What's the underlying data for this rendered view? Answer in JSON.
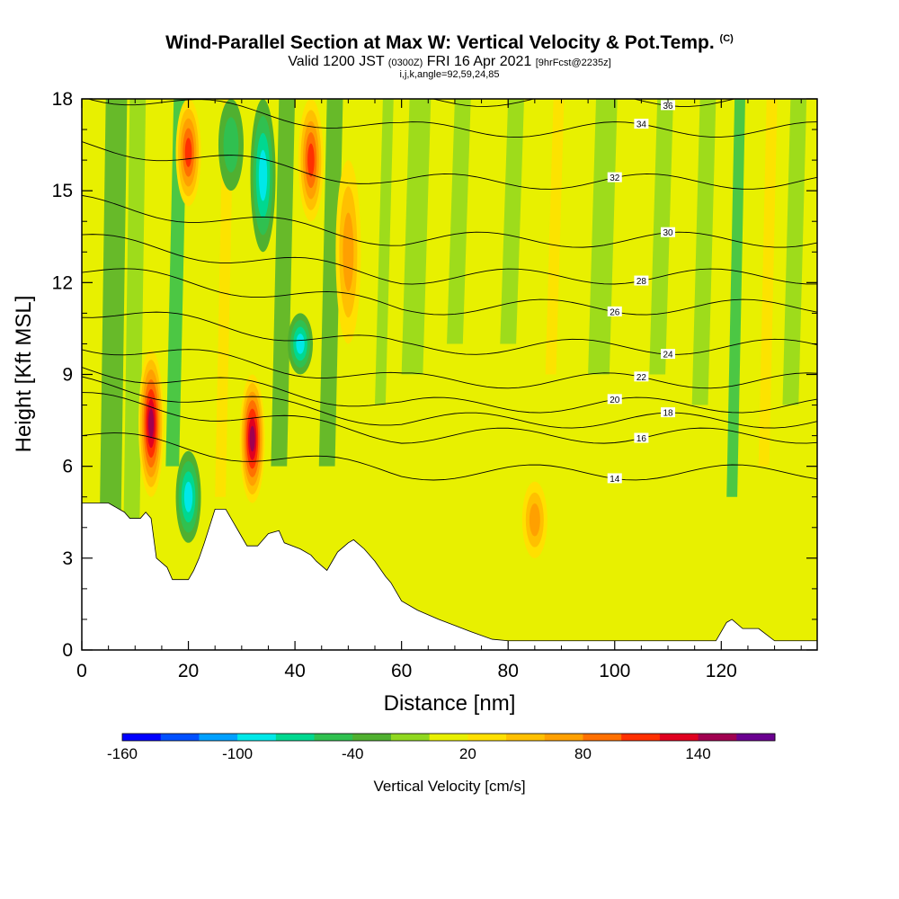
{
  "title": {
    "main": "Wind-Parallel Section at Max W: Vertical Velocity & Pot.Temp.",
    "copyright": "(C)",
    "valid_prefix": "Valid 1200 JST",
    "valid_utc": "(0300Z)",
    "valid_date": "FRI 16 Apr 2021",
    "forecast": "[9hrFcst@2235z]",
    "section_info": "i,j,k,angle=92,59,24,85"
  },
  "chart_data": {
    "type": "heatmap",
    "xlabel": "Distance [nm]",
    "ylabel": "Height [Kft MSL]",
    "xlim": [
      0,
      138
    ],
    "ylim": [
      0,
      18
    ],
    "x_ticks": [
      "0",
      "20",
      "40",
      "60",
      "80",
      "100",
      "120"
    ],
    "y_ticks": [
      "0",
      "3",
      "6",
      "9",
      "12",
      "15",
      "18"
    ],
    "grid": false,
    "terrain": {
      "x": [
        0,
        5,
        8,
        9,
        11,
        12,
        13,
        14,
        16,
        17,
        20,
        21,
        22,
        23,
        25,
        27,
        28,
        30,
        31,
        33,
        35,
        37,
        38,
        41,
        43,
        44,
        46,
        47,
        48,
        50,
        51,
        53,
        55,
        57,
        58,
        60,
        63,
        67,
        70,
        73,
        77,
        80,
        84,
        88,
        95,
        100,
        110,
        115,
        119,
        120,
        121,
        122,
        124,
        127,
        130,
        133,
        138
      ],
      "height": [
        4.8,
        4.8,
        4.5,
        4.3,
        4.3,
        4.5,
        4.3,
        3.0,
        2.7,
        2.3,
        2.3,
        2.6,
        3.0,
        3.5,
        4.6,
        4.6,
        4.3,
        3.7,
        3.4,
        3.4,
        3.8,
        3.9,
        3.5,
        3.3,
        3.1,
        2.9,
        2.6,
        2.9,
        3.2,
        3.5,
        3.6,
        3.3,
        2.9,
        2.4,
        2.2,
        1.6,
        1.3,
        1.0,
        0.8,
        0.6,
        0.35,
        0.3,
        0.3,
        0.3,
        0.3,
        0.3,
        0.3,
        0.3,
        0.3,
        0.6,
        0.9,
        1.0,
        0.7,
        0.7,
        0.3,
        0.3,
        0.3
      ]
    },
    "colorbar": {
      "title": "Vertical Velocity [cm/s]",
      "tick_labels": [
        "-160",
        "-100",
        "-40",
        "20",
        "80",
        "140"
      ],
      "levels": [
        -160,
        -140,
        -120,
        -100,
        -80,
        -60,
        -40,
        -20,
        0,
        20,
        40,
        60,
        80,
        100,
        120,
        140,
        160
      ],
      "colors": [
        "#0000ff",
        "#0050ff",
        "#00a0ff",
        "#00e8e8",
        "#00d890",
        "#30c050",
        "#50b030",
        "#90d820",
        "#e8f000",
        "#ffe000",
        "#ffc000",
        "#ffa000",
        "#ff7000",
        "#ff3000",
        "#e00020",
        "#a00050",
        "#6a0090"
      ]
    },
    "updraft_cores": [
      {
        "x": 13,
        "y_bottom": 5.0,
        "y_top": 9.8,
        "w_max": 150
      },
      {
        "x": 32,
        "y_bottom": 4.8,
        "y_top": 9.0,
        "w_max": 150
      },
      {
        "x": 43,
        "y_bottom": 14.0,
        "y_top": 18.0,
        "w_max": 120
      },
      {
        "x": 20,
        "y_bottom": 14.5,
        "y_top": 18.0,
        "w_max": 110
      },
      {
        "x": 50,
        "y_bottom": 10.0,
        "y_top": 16.0,
        "w_max": 80
      },
      {
        "x": 85,
        "y_bottom": 3.0,
        "y_top": 5.5,
        "w_max": 80
      }
    ],
    "downdraft_cores": [
      {
        "x": 20,
        "y_bottom": 3.5,
        "y_top": 6.5,
        "w_min": -100
      },
      {
        "x": 34,
        "y_bottom": 13.0,
        "y_top": 18.0,
        "w_min": -100
      },
      {
        "x": 41,
        "y_bottom": 9.0,
        "y_top": 11.0,
        "w_min": -90
      },
      {
        "x": 28,
        "y_bottom": 15.0,
        "y_top": 18.0,
        "w_min": -60
      }
    ],
    "theta_contours": [
      {
        "label": "14",
        "y_right": 5.8
      },
      {
        "label": "16",
        "y_right": 7.0
      },
      {
        "label": "18",
        "y_right": 7.5
      },
      {
        "label": "20",
        "y_right": 8.0
      },
      {
        "label": "22",
        "y_right": 8.8
      },
      {
        "label": "24",
        "y_right": 9.9
      },
      {
        "label": "26",
        "y_right": 11.2
      },
      {
        "label": "28",
        "y_right": 12.2
      },
      {
        "label": "30",
        "y_right": 13.4
      },
      {
        "label": "32",
        "y_right": 15.3
      },
      {
        "label": "34",
        "y_right": 17.0
      },
      {
        "label": "36",
        "y_right": 18.0
      }
    ]
  }
}
